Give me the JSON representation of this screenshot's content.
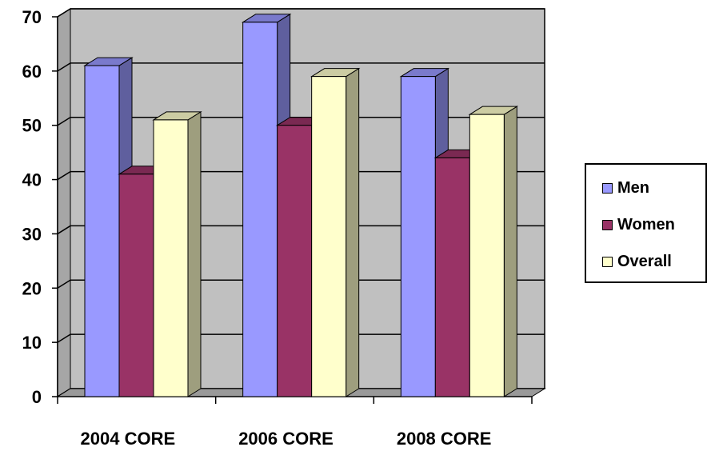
{
  "chart_data": {
    "type": "bar",
    "categories": [
      "2004 CORE",
      "2006 CORE",
      "2008 CORE"
    ],
    "series": [
      {
        "name": "Men",
        "values": [
          61,
          69,
          59
        ],
        "color": "#9999ff"
      },
      {
        "name": "Women",
        "values": [
          41,
          50,
          44
        ],
        "color": "#993366"
      },
      {
        "name": "Overall",
        "values": [
          51,
          59,
          52
        ],
        "color": "#ffffcc"
      }
    ],
    "ylim": [
      0,
      70
    ],
    "yticks": [
      "0",
      "10",
      "20",
      "30",
      "40",
      "50",
      "60",
      "70"
    ],
    "grid": true,
    "legend_position": "right",
    "style": "3d-column"
  }
}
